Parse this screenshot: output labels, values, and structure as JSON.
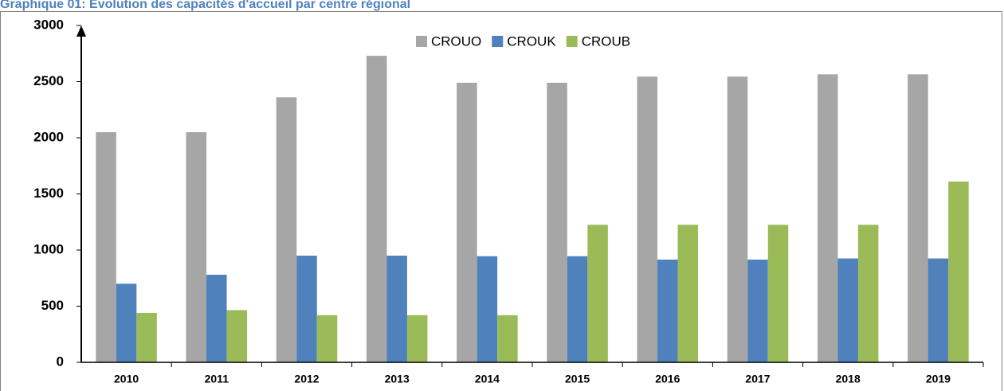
{
  "chart_data": {
    "type": "bar",
    "title": "Graphique 01: Evolution des capacités d'accueil par centre régional",
    "categories": [
      "2010",
      "2011",
      "2012",
      "2013",
      "2014",
      "2015",
      "2016",
      "2017",
      "2018",
      "2019"
    ],
    "series": [
      {
        "name": "CROUO",
        "color": "#a6a6a6",
        "values": [
          2050,
          2050,
          2360,
          2730,
          2490,
          2490,
          2545,
          2545,
          2565,
          2565
        ]
      },
      {
        "name": "CROUK",
        "color": "#4f81bd",
        "values": [
          700,
          780,
          950,
          950,
          945,
          945,
          915,
          915,
          925,
          925
        ]
      },
      {
        "name": "CROUB",
        "color": "#9bbb59",
        "values": [
          440,
          465,
          420,
          420,
          420,
          1225,
          1225,
          1225,
          1225,
          1610
        ]
      }
    ],
    "ylim": [
      0,
      3000
    ],
    "yticks": [
      0,
      500,
      1000,
      1500,
      2000,
      2500,
      3000
    ],
    "grid": false,
    "legend": "top"
  }
}
